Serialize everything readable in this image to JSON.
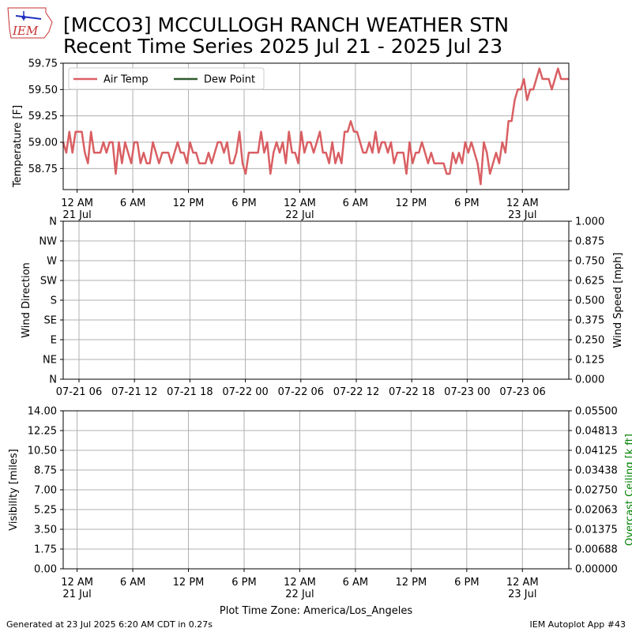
{
  "header": {
    "logo_text": "IEM",
    "title_line1": "[MCCO3] MCCULLOGH RANCH WEATHER STN",
    "title_line2": "Recent Time Series 2025 Jul 21 - 2025 Jul 23"
  },
  "colors": {
    "air_temp": "#d95f63",
    "dew_point": "#2e5a2e",
    "ceiling_label": "#008000",
    "grid": "#b0b0b0"
  },
  "footer": {
    "generated": "Generated at 23 Jul 2025 6:20 AM CDT in 0.27s",
    "app": "IEM Autoplot App #43",
    "timezone_label": "Plot Time Zone: America/Los_Angeles"
  },
  "chart_data": [
    {
      "type": "line",
      "ylabel": "Temperature [F]",
      "ylim": [
        58.55,
        59.75
      ],
      "yticks": [
        "58.75",
        "59.00",
        "59.25",
        "59.50",
        "59.75"
      ],
      "ytick_values": [
        58.75,
        59.0,
        59.25,
        59.5,
        59.75
      ],
      "x_start": "2025-07-20 22:30",
      "x_end": "2025-07-23 05:00",
      "x_tick_labels": [
        {
          "time": "2025-07-21 00:00",
          "line1": "12 AM",
          "line2": "21 Jul"
        },
        {
          "time": "2025-07-21 06:00",
          "line1": "6 AM",
          "line2": ""
        },
        {
          "time": "2025-07-21 12:00",
          "line1": "12 PM",
          "line2": ""
        },
        {
          "time": "2025-07-21 18:00",
          "line1": "6 PM",
          "line2": ""
        },
        {
          "time": "2025-07-22 00:00",
          "line1": "12 AM",
          "line2": "22 Jul"
        },
        {
          "time": "2025-07-22 06:00",
          "line1": "6 AM",
          "line2": ""
        },
        {
          "time": "2025-07-22 12:00",
          "line1": "12 PM",
          "line2": ""
        },
        {
          "time": "2025-07-22 18:00",
          "line1": "6 PM",
          "line2": ""
        },
        {
          "time": "2025-07-23 00:00",
          "line1": "12 AM",
          "line2": "23 Jul"
        }
      ],
      "legend": [
        "Air Temp",
        "Dew Point"
      ],
      "legend_position": "top-left",
      "grid": true,
      "series": [
        {
          "name": "Air Temp",
          "points": [
            [
              "2025-07-20 22:30",
              59.0
            ],
            [
              "2025-07-20 22:50",
              58.9
            ],
            [
              "2025-07-20 23:10",
              59.1
            ],
            [
              "2025-07-20 23:30",
              58.9
            ],
            [
              "2025-07-20 23:50",
              59.1
            ],
            [
              "2025-07-21 00:10",
              59.1
            ],
            [
              "2025-07-21 00:30",
              59.1
            ],
            [
              "2025-07-21 00:50",
              58.9
            ],
            [
              "2025-07-21 01:10",
              58.8
            ],
            [
              "2025-07-21 01:30",
              59.1
            ],
            [
              "2025-07-21 01:50",
              58.9
            ],
            [
              "2025-07-21 02:10",
              58.9
            ],
            [
              "2025-07-21 02:30",
              58.9
            ],
            [
              "2025-07-21 02:50",
              59.0
            ],
            [
              "2025-07-21 03:10",
              58.9
            ],
            [
              "2025-07-21 03:30",
              59.0
            ],
            [
              "2025-07-21 03:50",
              59.0
            ],
            [
              "2025-07-21 04:10",
              58.7
            ],
            [
              "2025-07-21 04:30",
              59.0
            ],
            [
              "2025-07-21 04:50",
              58.8
            ],
            [
              "2025-07-21 05:10",
              59.0
            ],
            [
              "2025-07-21 05:30",
              58.9
            ],
            [
              "2025-07-21 05:50",
              58.8
            ],
            [
              "2025-07-21 06:10",
              59.0
            ],
            [
              "2025-07-21 06:30",
              59.0
            ],
            [
              "2025-07-21 06:50",
              58.8
            ],
            [
              "2025-07-21 07:10",
              58.9
            ],
            [
              "2025-07-21 07:30",
              58.8
            ],
            [
              "2025-07-21 07:50",
              58.8
            ],
            [
              "2025-07-21 08:10",
              59.0
            ],
            [
              "2025-07-21 08:30",
              58.9
            ],
            [
              "2025-07-21 08:50",
              58.8
            ],
            [
              "2025-07-21 09:10",
              58.9
            ],
            [
              "2025-07-21 09:30",
              58.9
            ],
            [
              "2025-07-21 09:50",
              58.9
            ],
            [
              "2025-07-21 10:10",
              58.8
            ],
            [
              "2025-07-21 10:30",
              58.9
            ],
            [
              "2025-07-21 10:50",
              59.0
            ],
            [
              "2025-07-21 11:10",
              58.9
            ],
            [
              "2025-07-21 11:30",
              58.9
            ],
            [
              "2025-07-21 11:50",
              58.8
            ],
            [
              "2025-07-21 12:10",
              59.0
            ],
            [
              "2025-07-21 12:30",
              58.9
            ],
            [
              "2025-07-21 12:50",
              58.9
            ],
            [
              "2025-07-21 13:10",
              58.8
            ],
            [
              "2025-07-21 13:30",
              58.8
            ],
            [
              "2025-07-21 13:50",
              58.8
            ],
            [
              "2025-07-21 14:10",
              58.9
            ],
            [
              "2025-07-21 14:30",
              58.8
            ],
            [
              "2025-07-21 14:50",
              58.9
            ],
            [
              "2025-07-21 15:10",
              59.0
            ],
            [
              "2025-07-21 15:30",
              59.0
            ],
            [
              "2025-07-21 15:50",
              58.9
            ],
            [
              "2025-07-21 16:10",
              59.0
            ],
            [
              "2025-07-21 16:30",
              58.8
            ],
            [
              "2025-07-21 16:50",
              58.8
            ],
            [
              "2025-07-21 17:10",
              58.9
            ],
            [
              "2025-07-21 17:30",
              59.1
            ],
            [
              "2025-07-21 17:50",
              58.8
            ],
            [
              "2025-07-21 18:10",
              58.7
            ],
            [
              "2025-07-21 18:30",
              58.9
            ],
            [
              "2025-07-21 18:50",
              58.9
            ],
            [
              "2025-07-21 19:10",
              58.9
            ],
            [
              "2025-07-21 19:30",
              58.9
            ],
            [
              "2025-07-21 19:50",
              59.1
            ],
            [
              "2025-07-21 20:10",
              58.9
            ],
            [
              "2025-07-21 20:30",
              59.0
            ],
            [
              "2025-07-21 20:50",
              58.7
            ],
            [
              "2025-07-21 21:10",
              58.9
            ],
            [
              "2025-07-21 21:30",
              59.0
            ],
            [
              "2025-07-21 21:50",
              58.9
            ],
            [
              "2025-07-21 22:10",
              59.0
            ],
            [
              "2025-07-21 22:30",
              58.8
            ],
            [
              "2025-07-21 22:50",
              59.1
            ],
            [
              "2025-07-21 23:10",
              58.9
            ],
            [
              "2025-07-21 23:30",
              58.9
            ],
            [
              "2025-07-21 23:50",
              58.8
            ],
            [
              "2025-07-22 00:10",
              59.1
            ],
            [
              "2025-07-22 00:30",
              58.9
            ],
            [
              "2025-07-22 00:50",
              59.0
            ],
            [
              "2025-07-22 01:10",
              59.0
            ],
            [
              "2025-07-22 01:30",
              58.9
            ],
            [
              "2025-07-22 01:50",
              59.0
            ],
            [
              "2025-07-22 02:10",
              59.1
            ],
            [
              "2025-07-22 02:30",
              58.9
            ],
            [
              "2025-07-22 02:50",
              58.9
            ],
            [
              "2025-07-22 03:10",
              58.8
            ],
            [
              "2025-07-22 03:30",
              59.0
            ],
            [
              "2025-07-22 03:50",
              58.8
            ],
            [
              "2025-07-22 04:10",
              58.9
            ],
            [
              "2025-07-22 04:30",
              58.8
            ],
            [
              "2025-07-22 04:50",
              59.1
            ],
            [
              "2025-07-22 05:10",
              59.1
            ],
            [
              "2025-07-22 05:30",
              59.2
            ],
            [
              "2025-07-22 05:50",
              59.1
            ],
            [
              "2025-07-22 06:10",
              59.1
            ],
            [
              "2025-07-22 06:30",
              59.0
            ],
            [
              "2025-07-22 06:50",
              58.9
            ],
            [
              "2025-07-22 07:10",
              58.9
            ],
            [
              "2025-07-22 07:30",
              59.0
            ],
            [
              "2025-07-22 07:50",
              58.9
            ],
            [
              "2025-07-22 08:10",
              59.1
            ],
            [
              "2025-07-22 08:30",
              58.9
            ],
            [
              "2025-07-22 08:50",
              59.0
            ],
            [
              "2025-07-22 09:10",
              59.0
            ],
            [
              "2025-07-22 09:30",
              58.9
            ],
            [
              "2025-07-22 09:50",
              59.0
            ],
            [
              "2025-07-22 10:10",
              58.8
            ],
            [
              "2025-07-22 10:30",
              58.9
            ],
            [
              "2025-07-22 10:50",
              58.9
            ],
            [
              "2025-07-22 11:10",
              58.9
            ],
            [
              "2025-07-22 11:30",
              58.7
            ],
            [
              "2025-07-22 11:50",
              59.0
            ],
            [
              "2025-07-22 12:10",
              58.8
            ],
            [
              "2025-07-22 12:30",
              58.9
            ],
            [
              "2025-07-22 12:50",
              58.9
            ],
            [
              "2025-07-22 13:10",
              59.0
            ],
            [
              "2025-07-22 13:30",
              58.9
            ],
            [
              "2025-07-22 13:50",
              58.8
            ],
            [
              "2025-07-22 14:10",
              58.9
            ],
            [
              "2025-07-22 14:30",
              58.8
            ],
            [
              "2025-07-22 14:50",
              58.8
            ],
            [
              "2025-07-22 15:10",
              58.8
            ],
            [
              "2025-07-22 15:30",
              58.8
            ],
            [
              "2025-07-22 15:50",
              58.7
            ],
            [
              "2025-07-22 16:10",
              58.7
            ],
            [
              "2025-07-22 16:30",
              58.9
            ],
            [
              "2025-07-22 16:50",
              58.8
            ],
            [
              "2025-07-22 17:10",
              58.9
            ],
            [
              "2025-07-22 17:30",
              58.8
            ],
            [
              "2025-07-22 17:50",
              59.0
            ],
            [
              "2025-07-22 18:10",
              58.9
            ],
            [
              "2025-07-22 18:30",
              59.0
            ],
            [
              "2025-07-22 18:50",
              58.9
            ],
            [
              "2025-07-22 19:10",
              58.8
            ],
            [
              "2025-07-22 19:30",
              58.6
            ],
            [
              "2025-07-22 19:50",
              59.0
            ],
            [
              "2025-07-22 20:10",
              58.9
            ],
            [
              "2025-07-22 20:30",
              58.7
            ],
            [
              "2025-07-22 20:50",
              58.8
            ],
            [
              "2025-07-22 21:10",
              58.9
            ],
            [
              "2025-07-22 21:30",
              58.8
            ],
            [
              "2025-07-22 21:50",
              59.0
            ],
            [
              "2025-07-22 22:10",
              58.9
            ],
            [
              "2025-07-22 22:30",
              59.2
            ],
            [
              "2025-07-22 22:50",
              59.2
            ],
            [
              "2025-07-22 23:10",
              59.4
            ],
            [
              "2025-07-22 23:30",
              59.5
            ],
            [
              "2025-07-22 23:50",
              59.5
            ],
            [
              "2025-07-23 00:10",
              59.6
            ],
            [
              "2025-07-23 00:30",
              59.4
            ],
            [
              "2025-07-23 00:50",
              59.5
            ],
            [
              "2025-07-23 01:10",
              59.5
            ],
            [
              "2025-07-23 01:30",
              59.6
            ],
            [
              "2025-07-23 01:50",
              59.7
            ],
            [
              "2025-07-23 02:10",
              59.6
            ],
            [
              "2025-07-23 02:30",
              59.6
            ],
            [
              "2025-07-23 02:50",
              59.6
            ],
            [
              "2025-07-23 03:10",
              59.5
            ],
            [
              "2025-07-23 03:30",
              59.6
            ],
            [
              "2025-07-23 03:50",
              59.7
            ],
            [
              "2025-07-23 04:10",
              59.6
            ],
            [
              "2025-07-23 04:30",
              59.6
            ],
            [
              "2025-07-23 04:50",
              59.6
            ],
            [
              "2025-07-23 05:00",
              59.6
            ]
          ]
        },
        {
          "name": "Dew Point",
          "points": []
        }
      ]
    },
    {
      "type": "line",
      "ylabel": "Wind Direction",
      "y2label": "Wind Speed [mph]",
      "yticks": [
        "N",
        "NE",
        "E",
        "SE",
        "S",
        "SW",
        "W",
        "NW",
        "N"
      ],
      "y2ticks": [
        "0.000",
        "0.125",
        "0.250",
        "0.375",
        "0.500",
        "0.625",
        "0.750",
        "0.875",
        "1.000"
      ],
      "xticks": [
        "07-21 06",
        "07-21 12",
        "07-21 18",
        "07-22 00",
        "07-22 06",
        "07-22 12",
        "07-22 18",
        "07-23 00",
        "07-23 06"
      ],
      "grid": true,
      "series": []
    },
    {
      "type": "line",
      "ylabel": "Visibility [miles]",
      "y2label": "Overcast Ceiling [k ft]",
      "yticks": [
        "0.00",
        "1.75",
        "3.50",
        "5.25",
        "7.00",
        "8.75",
        "10.50",
        "12.25",
        "14.00"
      ],
      "y2ticks": [
        "0.00000",
        "0.00688",
        "0.01375",
        "0.02063",
        "0.02750",
        "0.03438",
        "0.04125",
        "0.04813",
        "0.05500"
      ],
      "x_tick_labels": [
        {
          "line1": "12 AM",
          "line2": "21 Jul"
        },
        {
          "line1": "6 AM",
          "line2": ""
        },
        {
          "line1": "12 PM",
          "line2": ""
        },
        {
          "line1": "6 PM",
          "line2": ""
        },
        {
          "line1": "12 AM",
          "line2": "22 Jul"
        },
        {
          "line1": "6 AM",
          "line2": ""
        },
        {
          "line1": "12 PM",
          "line2": ""
        },
        {
          "line1": "6 PM",
          "line2": ""
        },
        {
          "line1": "12 AM",
          "line2": "23 Jul"
        }
      ],
      "grid": true,
      "series": []
    }
  ]
}
